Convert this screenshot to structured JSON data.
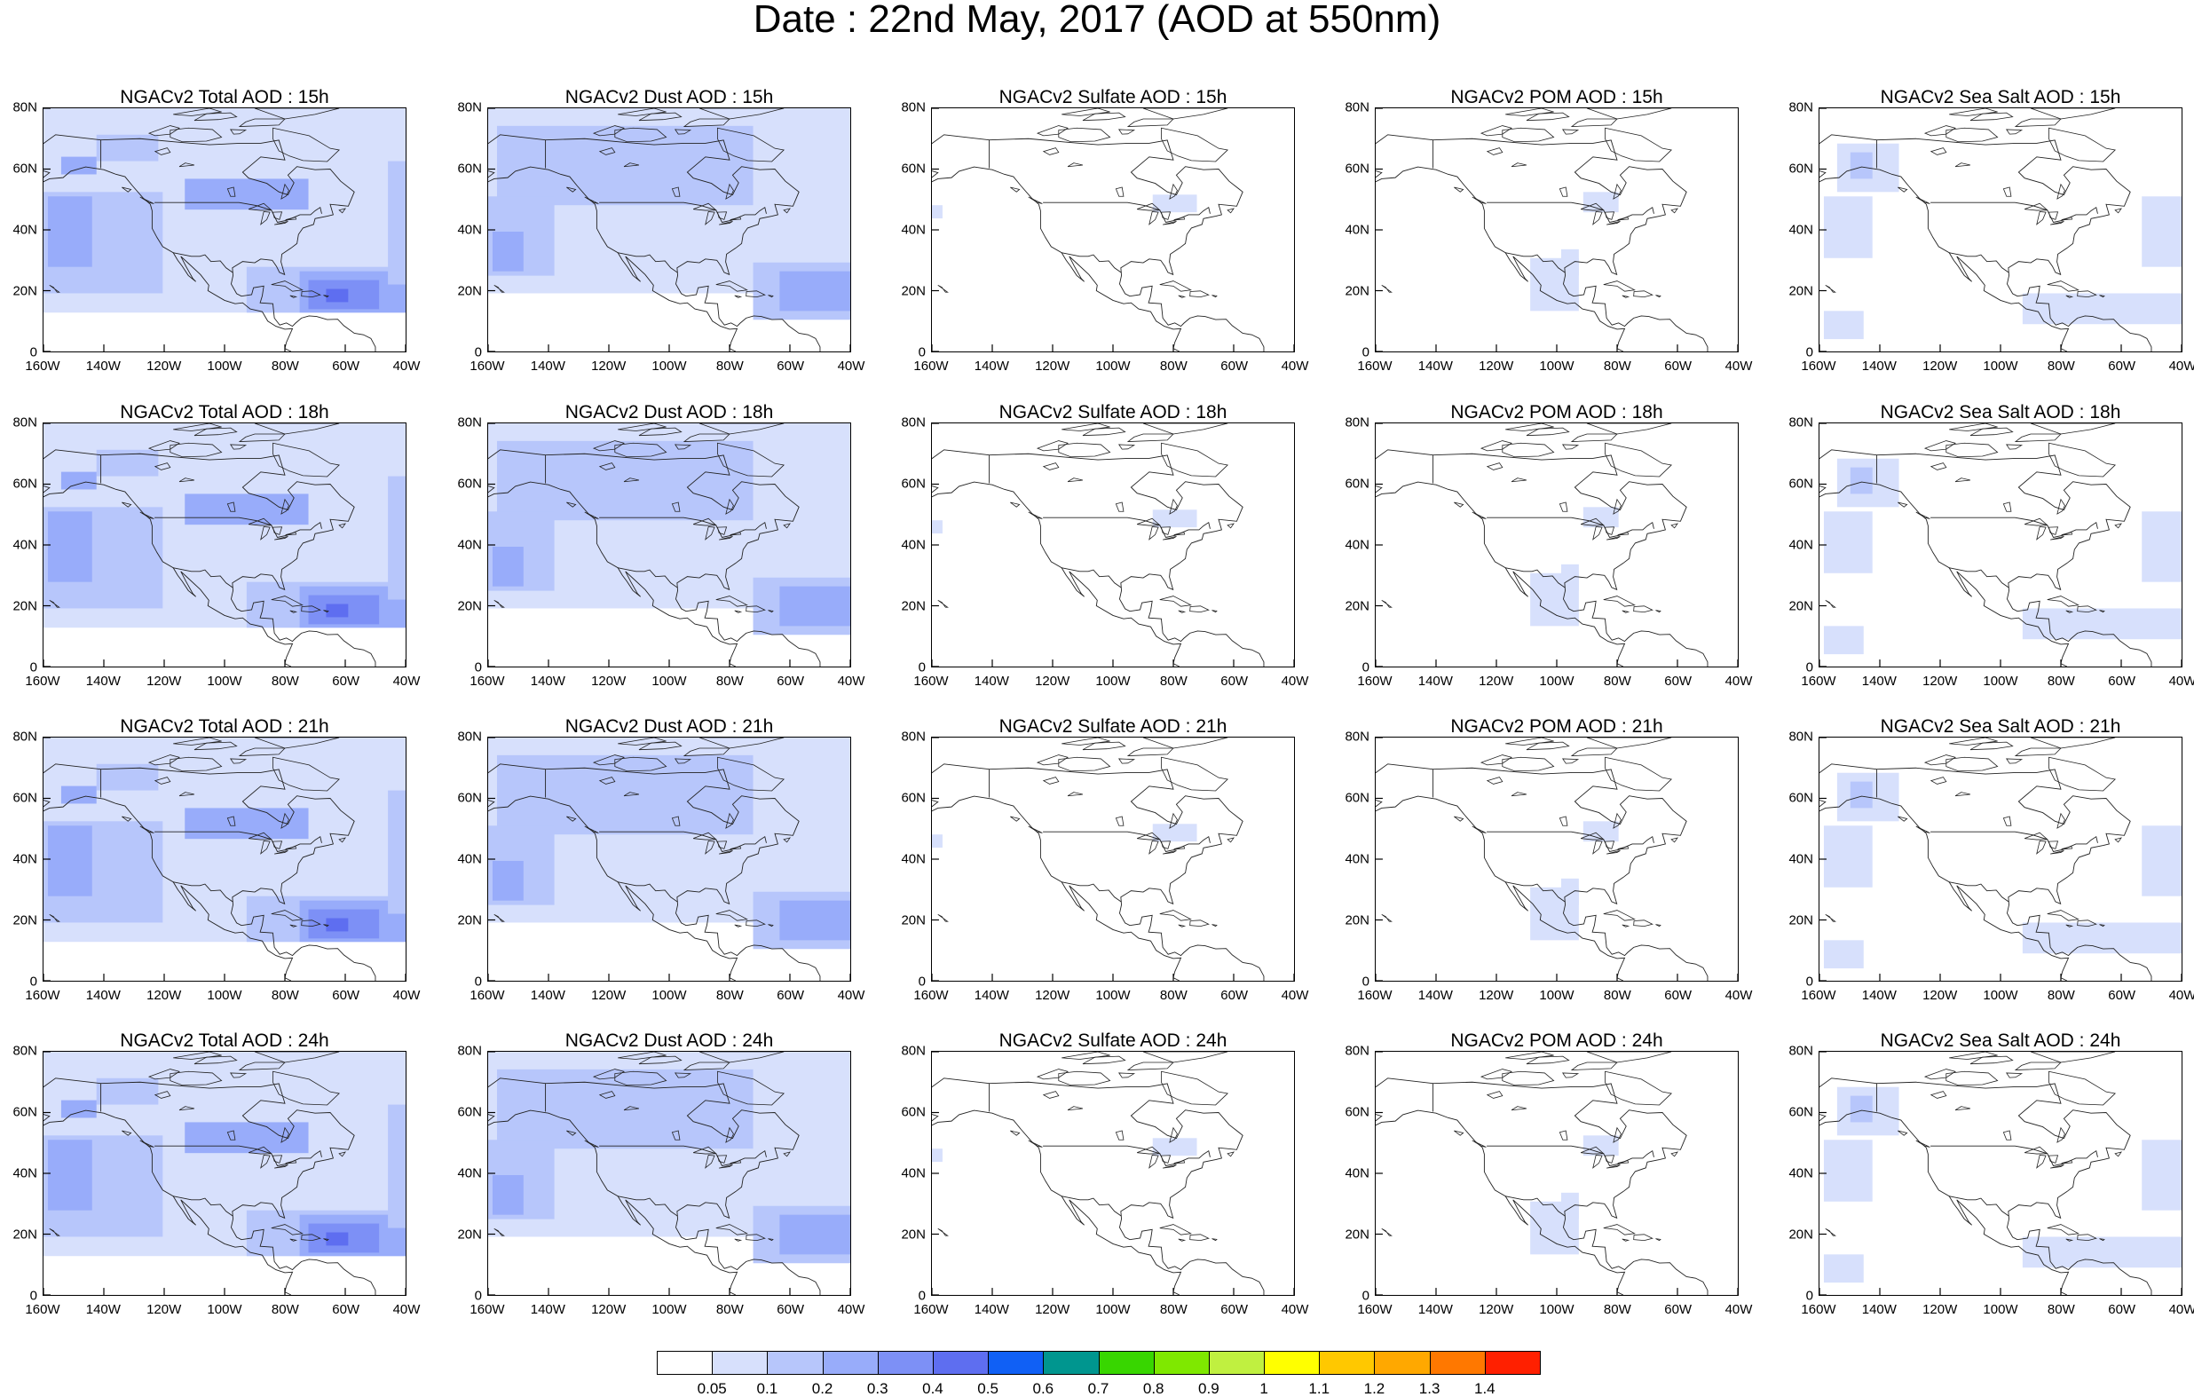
{
  "title": "Date : 22nd May, 2017 (AOD at 550nm)",
  "x_tick_labels": [
    "160W",
    "140W",
    "120W",
    "100W",
    "80W",
    "60W",
    "40W"
  ],
  "y_tick_labels": [
    "80N",
    "60N",
    "40N",
    "20N",
    "0"
  ],
  "rows": [
    [
      "NGACv2 Total AOD : 15h",
      "NGACv2 Dust AOD : 15h",
      "NGACv2 Sulfate AOD : 15h",
      "NGACv2 POM AOD : 15h",
      "NGACv2 Sea Salt AOD : 15h"
    ],
    [
      "NGACv2 Total AOD : 18h",
      "NGACv2 Dust AOD : 18h",
      "NGACv2 Sulfate AOD : 18h",
      "NGACv2 POM AOD : 18h",
      "NGACv2 Sea Salt AOD : 18h"
    ],
    [
      "NGACv2 Total AOD : 21h",
      "NGACv2 Dust AOD : 21h",
      "NGACv2 Sulfate AOD : 21h",
      "NGACv2 POM AOD : 21h",
      "NGACv2 Sea Salt AOD : 21h"
    ],
    [
      "NGACv2 Total AOD : 24h",
      "NGACv2 Dust AOD : 24h",
      "NGACv2 Sulfate AOD : 24h",
      "NGACv2 POM AOD : 24h",
      "NGACv2 Sea Salt  AOD : 24h"
    ]
  ],
  "colorbar": {
    "labels": [
      "0.05",
      "0.1",
      "0.2",
      "0.3",
      "0.4",
      "0.5",
      "0.6",
      "0.7",
      "0.8",
      "0.9",
      "1",
      "1.1",
      "1.2",
      "1.3",
      "1.4"
    ],
    "colors": [
      "#ffffff",
      "#d7e0fc",
      "#b7c6fb",
      "#98acfa",
      "#7d90f6",
      "#5e6ef0",
      "#1060f5",
      "#00968f",
      "#38d600",
      "#7fe800",
      "#c0f040",
      "#ffff00",
      "#ffc800",
      "#ffa800",
      "#ff7800",
      "#ff2000"
    ]
  }
}
